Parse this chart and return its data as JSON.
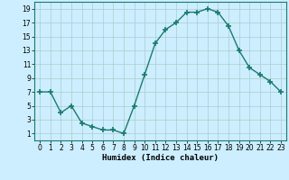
{
  "x": [
    0,
    1,
    2,
    3,
    4,
    5,
    6,
    7,
    8,
    9,
    10,
    11,
    12,
    13,
    14,
    15,
    16,
    17,
    18,
    19,
    20,
    21,
    22,
    23
  ],
  "y": [
    7,
    7,
    4,
    5,
    2.5,
    2,
    1.5,
    1.5,
    1,
    5,
    9.5,
    14,
    16,
    17,
    18.5,
    18.5,
    19,
    18.5,
    16.5,
    13,
    10.5,
    9.5,
    8.5,
    7
  ],
  "line_color": "#1a7a6e",
  "marker": "+",
  "marker_size": 4,
  "marker_lw": 1.2,
  "bg_color": "#cceeff",
  "grid_color": "#aacccc",
  "xlabel": "Humidex (Indice chaleur)",
  "xlim": [
    -0.5,
    23.5
  ],
  "ylim": [
    0,
    20
  ],
  "yticks": [
    1,
    3,
    5,
    7,
    9,
    11,
    13,
    15,
    17,
    19
  ],
  "xticks": [
    0,
    1,
    2,
    3,
    4,
    5,
    6,
    7,
    8,
    9,
    10,
    11,
    12,
    13,
    14,
    15,
    16,
    17,
    18,
    19,
    20,
    21,
    22,
    23
  ],
  "xlabel_fontsize": 6.5,
  "tick_fontsize": 5.5,
  "linewidth": 1.0
}
